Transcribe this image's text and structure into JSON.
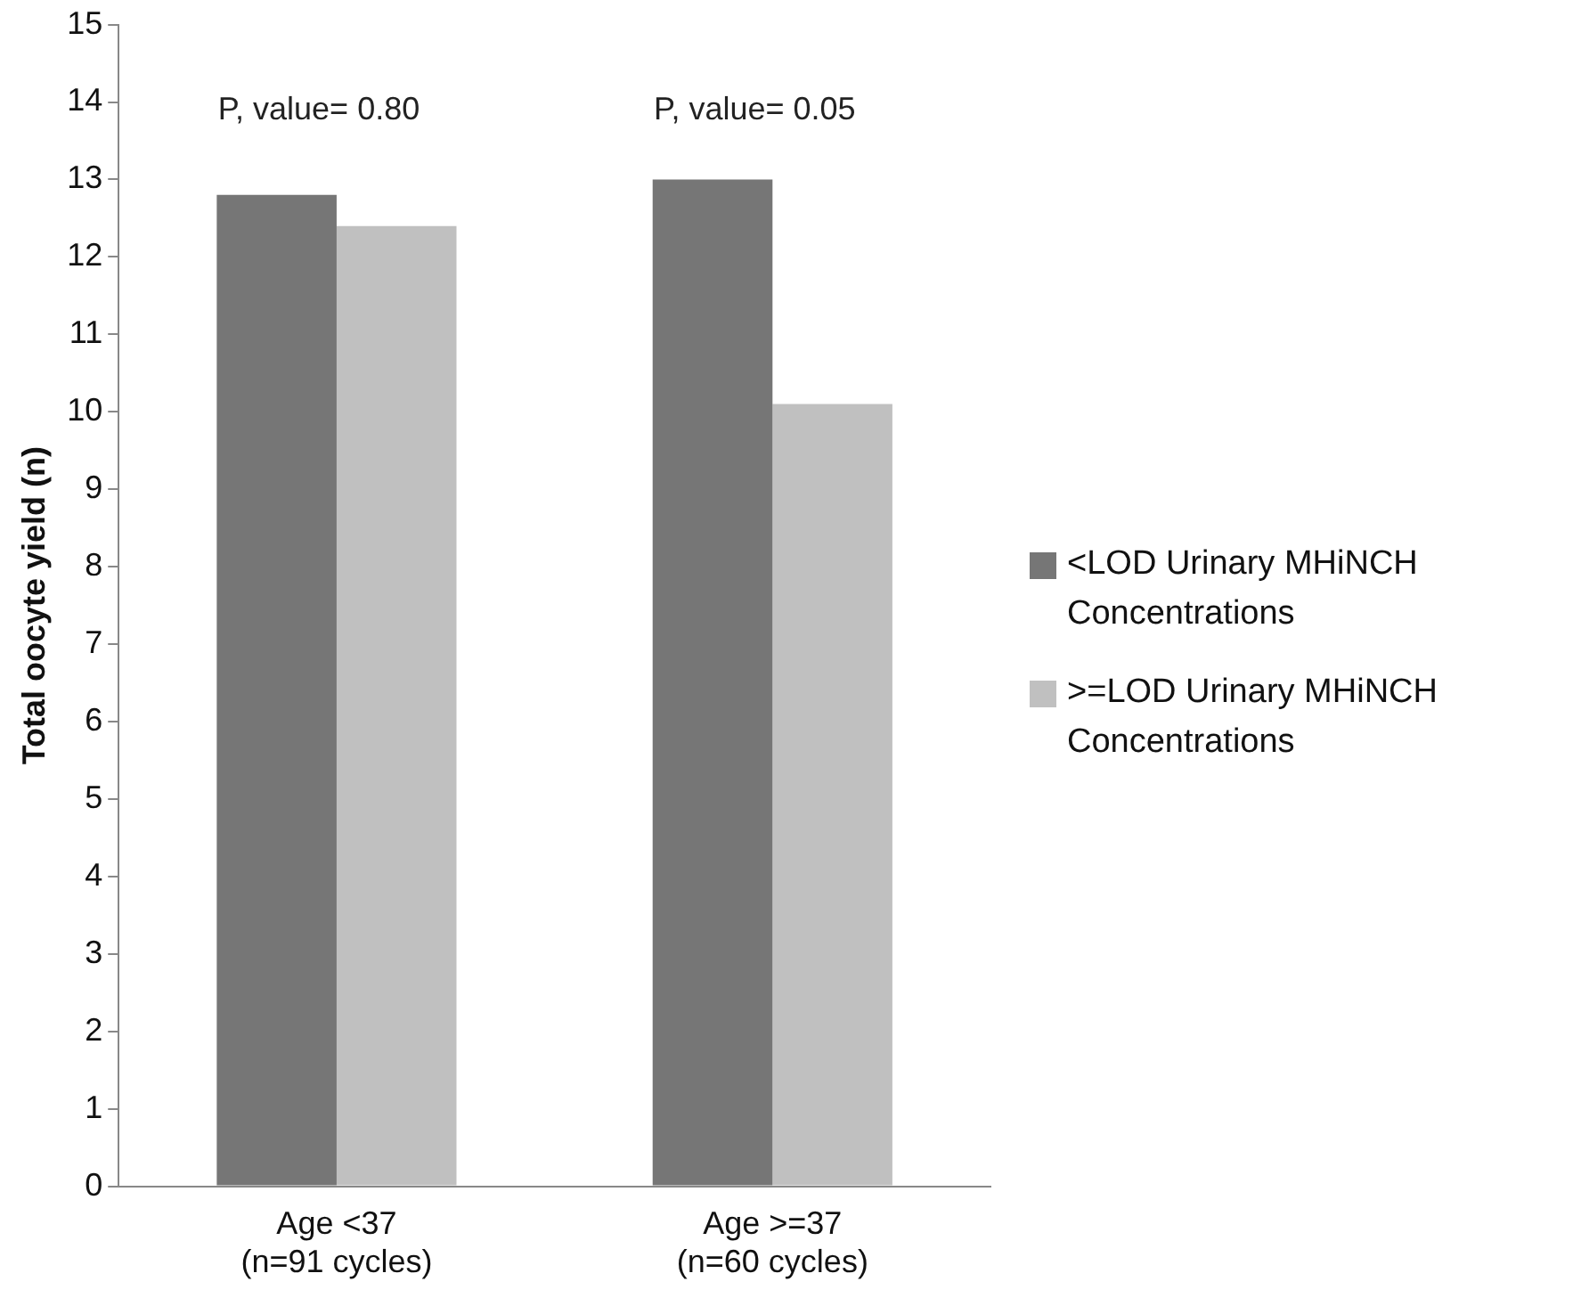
{
  "chart_data": {
    "type": "bar",
    "ylabel": "Total oocyte yield (n)",
    "categories": [
      "Age <37\n(n=91 cycles)",
      "Age >=37\n(n=60 cycles)"
    ],
    "series": [
      {
        "name": "<LOD Urinary MHiNCH Concentrations",
        "color": "#767676",
        "values": [
          12.8,
          13.0
        ]
      },
      {
        "name": ">=LOD Urinary MHiNCH Concentrations",
        "color": "#c0c0c0",
        "values": [
          12.4,
          10.1
        ]
      }
    ],
    "ylim": [
      0,
      15
    ],
    "yticks": [
      0,
      1,
      2,
      3,
      4,
      5,
      6,
      7,
      8,
      9,
      10,
      11,
      12,
      13,
      14,
      15
    ],
    "grid": false,
    "legend": "right",
    "annotations": [
      "P, value= 0.80",
      "P, value= 0.05"
    ]
  }
}
